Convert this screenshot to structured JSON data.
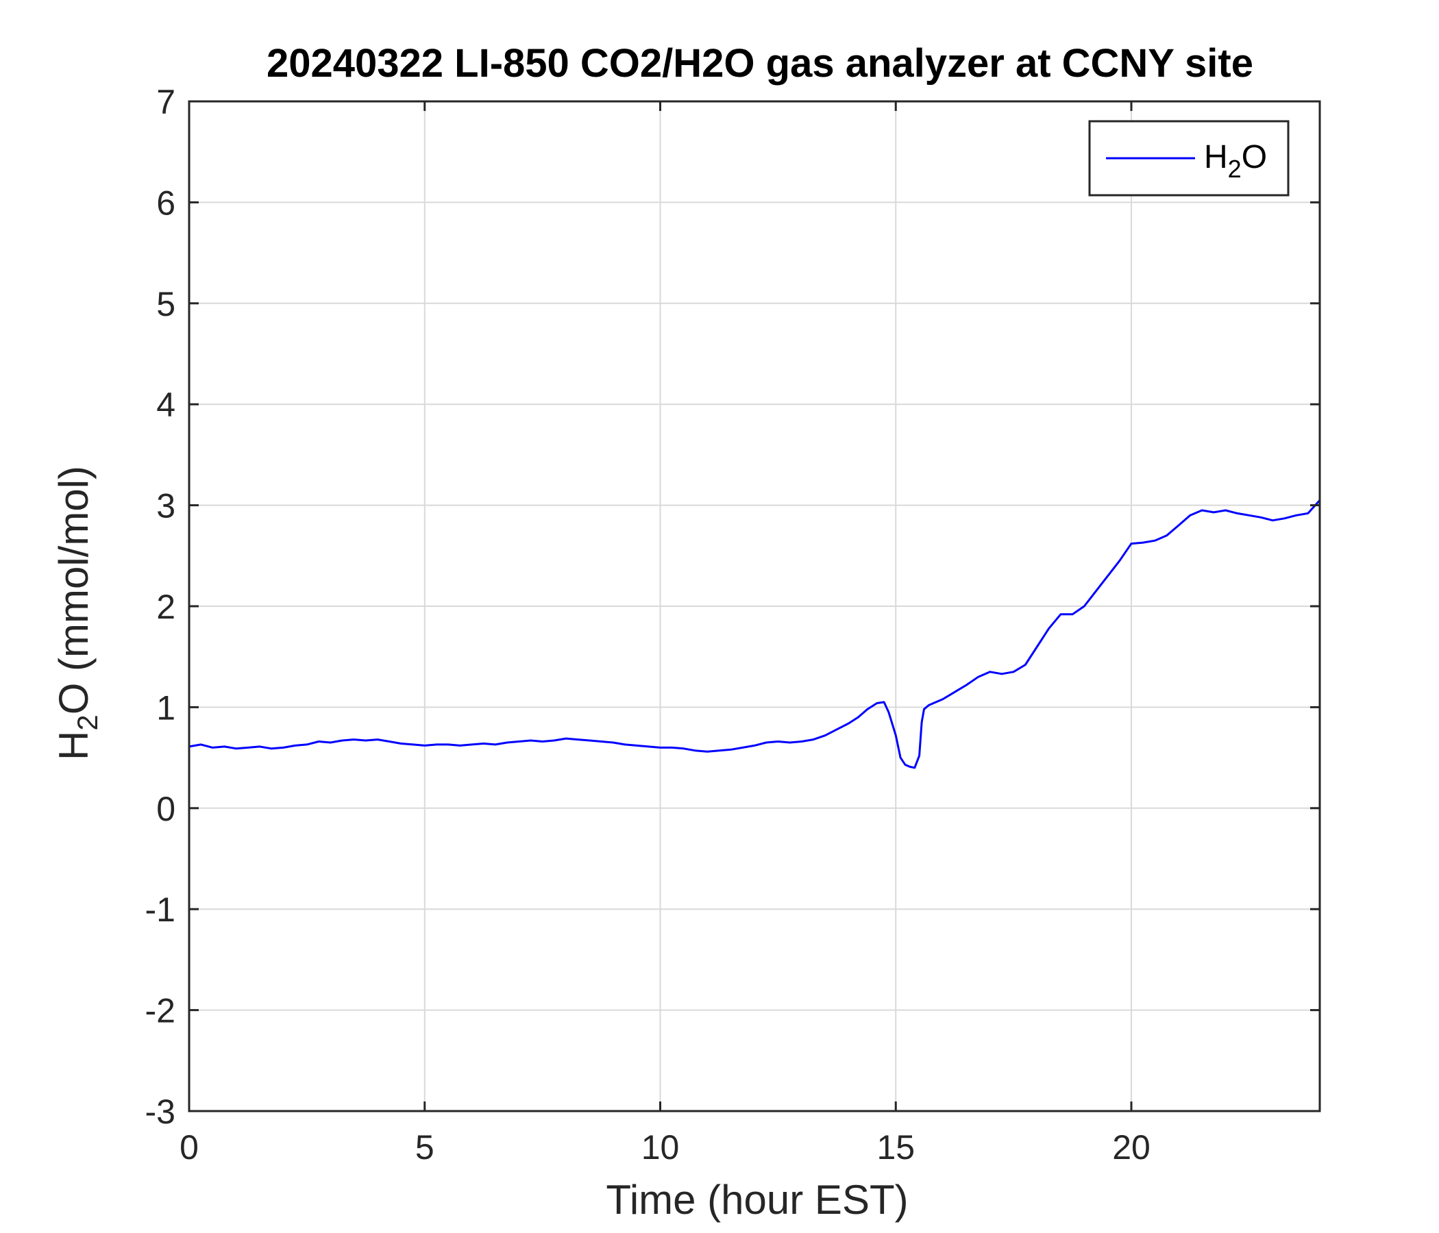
{
  "chart_data": {
    "type": "line",
    "title": "20240322 LI-850 CO2/H2O gas analyzer at CCNY site",
    "xlabel": "Time (hour EST)",
    "ylabel": {
      "base": "H",
      "sub": "2",
      "rest": "O (mmol/mol)"
    },
    "xlim": [
      0,
      24
    ],
    "ylim": [
      -3,
      7
    ],
    "xticks": [
      0,
      5,
      10,
      15,
      20
    ],
    "yticks": [
      -3,
      -2,
      -1,
      0,
      1,
      2,
      3,
      4,
      5,
      6,
      7
    ],
    "grid": true,
    "legend_position": "top-right",
    "legend": [
      {
        "base": "H",
        "sub": "2",
        "rest": "O"
      }
    ],
    "series_color": "#0000ff",
    "series": [
      {
        "x": [
          0,
          0.25,
          0.5,
          0.75,
          1,
          1.25,
          1.5,
          1.75,
          2,
          2.25,
          2.5,
          2.75,
          3,
          3.25,
          3.5,
          3.75,
          4,
          4.25,
          4.5,
          4.75,
          5,
          5.25,
          5.5,
          5.75,
          6,
          6.25,
          6.5,
          6.75,
          7,
          7.25,
          7.5,
          7.75,
          8,
          8.25,
          8.5,
          8.75,
          9,
          9.25,
          9.5,
          9.75,
          10,
          10.25,
          10.5,
          10.75,
          11,
          11.25,
          11.5,
          11.75,
          12,
          12.25,
          12.5,
          12.75,
          13,
          13.25,
          13.5,
          13.75,
          14,
          14.2,
          14.4,
          14.6,
          14.75,
          14.85,
          15,
          15.1,
          15.2,
          15.3,
          15.4,
          15.5,
          15.55,
          15.6,
          15.7,
          15.8,
          16,
          16.25,
          16.5,
          16.75,
          17,
          17.25,
          17.5,
          17.75,
          18,
          18.25,
          18.5,
          18.75,
          19,
          19.25,
          19.5,
          19.75,
          20,
          20.25,
          20.5,
          20.75,
          21,
          21.25,
          21.5,
          21.75,
          22,
          22.25,
          22.5,
          22.75,
          23,
          23.25,
          23.5,
          23.75,
          24
        ],
        "y": [
          0.61,
          0.63,
          0.6,
          0.61,
          0.59,
          0.6,
          0.61,
          0.59,
          0.6,
          0.62,
          0.63,
          0.66,
          0.65,
          0.67,
          0.68,
          0.67,
          0.68,
          0.66,
          0.64,
          0.63,
          0.62,
          0.63,
          0.63,
          0.62,
          0.63,
          0.64,
          0.63,
          0.65,
          0.66,
          0.67,
          0.66,
          0.67,
          0.69,
          0.68,
          0.67,
          0.66,
          0.65,
          0.63,
          0.62,
          0.61,
          0.6,
          0.6,
          0.59,
          0.57,
          0.56,
          0.57,
          0.58,
          0.6,
          0.62,
          0.65,
          0.66,
          0.65,
          0.66,
          0.68,
          0.72,
          0.78,
          0.84,
          0.9,
          0.98,
          1.04,
          1.05,
          0.95,
          0.72,
          0.5,
          0.43,
          0.41,
          0.4,
          0.52,
          0.85,
          0.98,
          1.02,
          1.04,
          1.08,
          1.15,
          1.22,
          1.3,
          1.35,
          1.33,
          1.35,
          1.42,
          1.6,
          1.78,
          1.92,
          1.92,
          2.0,
          2.15,
          2.3,
          2.45,
          2.62,
          2.63,
          2.65,
          2.7,
          2.8,
          2.9,
          2.95,
          2.93,
          2.95,
          2.92,
          2.9,
          2.88,
          2.85,
          2.87,
          2.9,
          2.92,
          3.05
        ]
      }
    ]
  }
}
